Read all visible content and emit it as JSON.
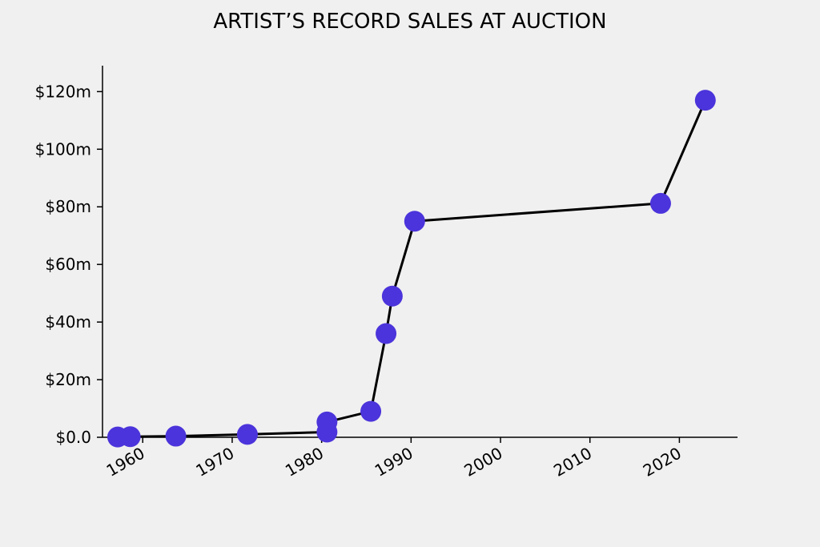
{
  "chart_data": {
    "type": "line",
    "title": "ARTIST’S RECORD SALES AT AUCTION",
    "xlabel": "",
    "ylabel": "",
    "xlim": [
      1955.5,
      2026.5
    ],
    "ylim": [
      0,
      129
    ],
    "grid": false,
    "legend": "none",
    "x_ticks": [
      1960,
      1970,
      1980,
      1990,
      2000,
      2010,
      2020
    ],
    "x_tick_labels": [
      "1960",
      "1970",
      "1980",
      "1990",
      "2000",
      "2010",
      "2020"
    ],
    "y_ticks": [
      0,
      20,
      40,
      60,
      80,
      100,
      120
    ],
    "y_tick_labels": [
      "$0.0",
      "$20m",
      "$40m",
      "$60m",
      "$80m",
      "$100m",
      "$120m"
    ],
    "series": [
      {
        "marker_color": "#4b34db",
        "line_color": "#000000",
        "points": [
          {
            "x": 1957.2,
            "y": 0.1
          },
          {
            "x": 1958.6,
            "y": 0.2
          },
          {
            "x": 1963.7,
            "y": 0.4
          },
          {
            "x": 1971.7,
            "y": 1.0
          },
          {
            "x": 1980.6,
            "y": 1.8
          },
          {
            "x": 1980.6,
            "y": 5.3
          },
          {
            "x": 1985.5,
            "y": 9.0
          },
          {
            "x": 1987.2,
            "y": 36.0
          },
          {
            "x": 1987.9,
            "y": 49.0
          },
          {
            "x": 1990.4,
            "y": 75.0
          },
          {
            "x": 2017.9,
            "y": 81.2
          },
          {
            "x": 2022.9,
            "y": 117.0
          }
        ]
      }
    ]
  }
}
